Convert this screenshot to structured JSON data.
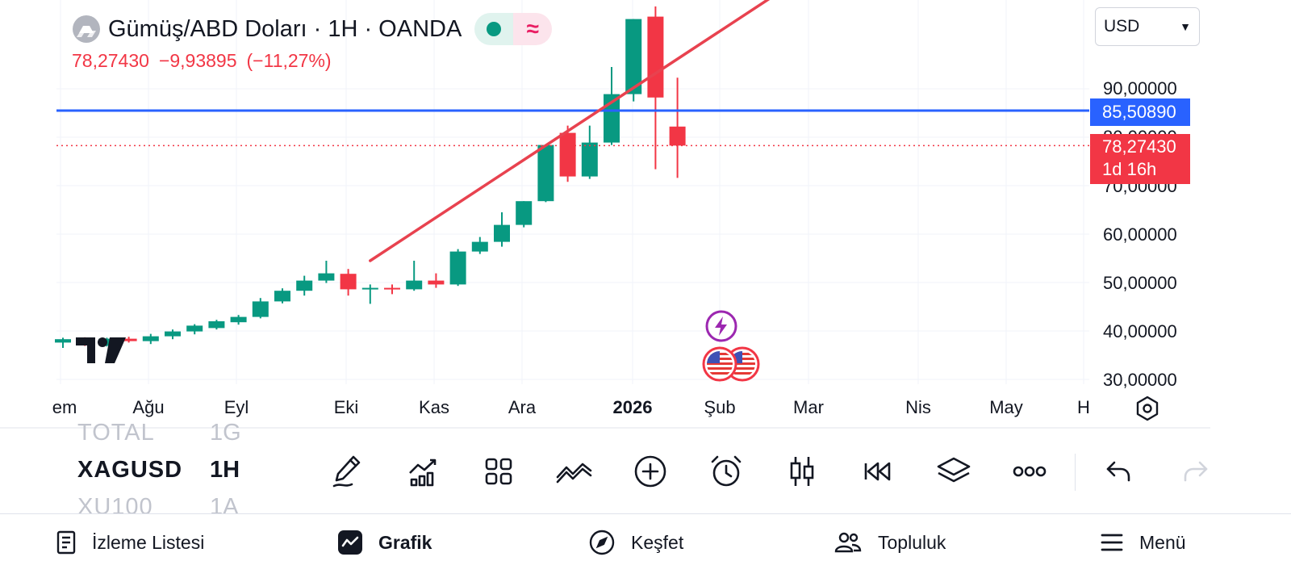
{
  "header": {
    "symbol_title": "Gümüş/ABD Doları · 1H · OANDA",
    "last_price": "78,27430",
    "change": "−9,93895",
    "change_pct": "(−11,27%)",
    "market_status_icon": "market-open-dot-icon",
    "delayed_icon": "approx-icon"
  },
  "currency_select": {
    "value": "USD"
  },
  "y_axis": {
    "labels": [
      "90,00000",
      "80,00000",
      "70,00000",
      "60,00000",
      "50,00000",
      "40,00000",
      "30,00000"
    ]
  },
  "x_axis": {
    "labels": [
      {
        "text": "em",
        "bold": false
      },
      {
        "text": "Ağu",
        "bold": false
      },
      {
        "text": "Eyl",
        "bold": false
      },
      {
        "text": "Eki",
        "bold": false
      },
      {
        "text": "Kas",
        "bold": false
      },
      {
        "text": "Ara",
        "bold": false
      },
      {
        "text": "2026",
        "bold": true
      },
      {
        "text": "Şub",
        "bold": false
      },
      {
        "text": "Mar",
        "bold": false
      },
      {
        "text": "Nis",
        "bold": false
      },
      {
        "text": "May",
        "bold": false
      },
      {
        "text": "H",
        "bold": false
      }
    ]
  },
  "horizontal_line": {
    "value": 85.5089,
    "label": "85,50890",
    "color": "#2962ff"
  },
  "price_badge": {
    "value": 78.2743,
    "label": "78,27430",
    "countdown": "1d 16h",
    "color": "#f23645"
  },
  "trend_line": {
    "from": {
      "candle": 14,
      "price": 54.5
    },
    "to": {
      "candle": 34,
      "price": 114
    },
    "color": "#e8424f"
  },
  "chart_data": {
    "type": "candlestick",
    "title": "Gümüş/ABD Doları · 1H · OANDA",
    "interval": "1H",
    "colors": {
      "up": "#089981",
      "down": "#f23645"
    },
    "ylim": [
      28.5,
      107
    ],
    "candles": [
      {
        "o": 37.6,
        "h": 38.6,
        "l": 36.5,
        "c": 38.3
      },
      {
        "o": 38.3,
        "h": 38.7,
        "l": 36.9,
        "c": 37.0
      },
      {
        "o": 37.0,
        "h": 38.6,
        "l": 36.8,
        "c": 38.4
      },
      {
        "o": 38.4,
        "h": 38.8,
        "l": 37.6,
        "c": 37.9
      },
      {
        "o": 37.9,
        "h": 39.4,
        "l": 37.3,
        "c": 38.9
      },
      {
        "o": 38.9,
        "h": 40.3,
        "l": 38.3,
        "c": 39.9
      },
      {
        "o": 39.9,
        "h": 41.4,
        "l": 39.3,
        "c": 41.1
      },
      {
        "o": 40.6,
        "h": 42.3,
        "l": 40.3,
        "c": 42.0
      },
      {
        "o": 41.8,
        "h": 43.3,
        "l": 41.3,
        "c": 42.9
      },
      {
        "o": 42.9,
        "h": 46.8,
        "l": 42.6,
        "c": 46.1
      },
      {
        "o": 46.1,
        "h": 48.8,
        "l": 45.7,
        "c": 48.3
      },
      {
        "o": 48.3,
        "h": 51.4,
        "l": 47.3,
        "c": 50.4
      },
      {
        "o": 50.4,
        "h": 54.5,
        "l": 49.9,
        "c": 51.9
      },
      {
        "o": 51.8,
        "h": 52.8,
        "l": 47.3,
        "c": 48.6
      },
      {
        "o": 48.6,
        "h": 49.6,
        "l": 45.6,
        "c": 48.9
      },
      {
        "o": 48.9,
        "h": 49.6,
        "l": 47.6,
        "c": 48.6
      },
      {
        "o": 48.6,
        "h": 54.5,
        "l": 48.3,
        "c": 50.4
      },
      {
        "o": 50.4,
        "h": 51.9,
        "l": 48.9,
        "c": 49.6
      },
      {
        "o": 49.6,
        "h": 56.9,
        "l": 49.3,
        "c": 56.4
      },
      {
        "o": 56.4,
        "h": 59.4,
        "l": 55.9,
        "c": 58.4
      },
      {
        "o": 58.4,
        "h": 64.5,
        "l": 57.4,
        "c": 61.9
      },
      {
        "o": 61.9,
        "h": 66.8,
        "l": 61.4,
        "c": 66.8
      },
      {
        "o": 66.8,
        "h": 78.4,
        "l": 66.6,
        "c": 78.4
      },
      {
        "o": 80.9,
        "h": 82.4,
        "l": 70.8,
        "c": 71.9
      },
      {
        "o": 71.9,
        "h": 82.4,
        "l": 71.4,
        "c": 78.9
      },
      {
        "o": 78.9,
        "h": 94.5,
        "l": 78.4,
        "c": 88.9
      },
      {
        "o": 88.9,
        "h": 104.4,
        "l": 87.4,
        "c": 104.4
      },
      {
        "o": 104.9,
        "h": 107.0,
        "l": 73.4,
        "c": 88.2
      },
      {
        "o": 82.2,
        "h": 92.3,
        "l": 71.6,
        "c": 78.2743
      }
    ]
  },
  "events": [
    {
      "icon": "lightning-event-icon",
      "label": "⚡"
    },
    {
      "icon": "us-flag-event-icon"
    },
    {
      "icon": "us-flag-event-icon"
    }
  ],
  "watchlist": [
    {
      "symbol": "TOTAL",
      "interval": "1G",
      "faded": true
    },
    {
      "symbol": "XAGUSD",
      "interval": "1H",
      "faded": false
    },
    {
      "symbol": "XU100",
      "interval": "1A",
      "faded": true
    }
  ],
  "toolbar": [
    {
      "name": "drawing-tool-button",
      "icon": "pencil-icon"
    },
    {
      "name": "indicators-button",
      "icon": "chart-up-icon"
    },
    {
      "name": "templates-button",
      "icon": "grid-icon"
    },
    {
      "name": "compare-button",
      "icon": "compare-icon"
    },
    {
      "name": "add-button",
      "icon": "plus-circle-icon"
    },
    {
      "name": "alert-button",
      "icon": "alarm-clock-icon"
    },
    {
      "name": "chart-type-button",
      "icon": "candles-icon"
    },
    {
      "name": "replay-button",
      "icon": "rewind-icon"
    },
    {
      "name": "layers-button",
      "icon": "layers-icon"
    },
    {
      "name": "more-button",
      "icon": "more-icon"
    },
    {
      "name": "undo-button",
      "icon": "undo-icon"
    },
    {
      "name": "redo-button",
      "icon": "redo-icon"
    }
  ],
  "bottom_nav": [
    {
      "label": "İzleme Listesi",
      "icon": "watchlist-icon"
    },
    {
      "label": "Grafik",
      "icon": "chart-icon",
      "active": true
    },
    {
      "label": "Keşfet",
      "icon": "compass-icon"
    },
    {
      "label": "Topluluk",
      "icon": "community-icon"
    },
    {
      "label": "Menü",
      "icon": "menu-icon"
    }
  ]
}
